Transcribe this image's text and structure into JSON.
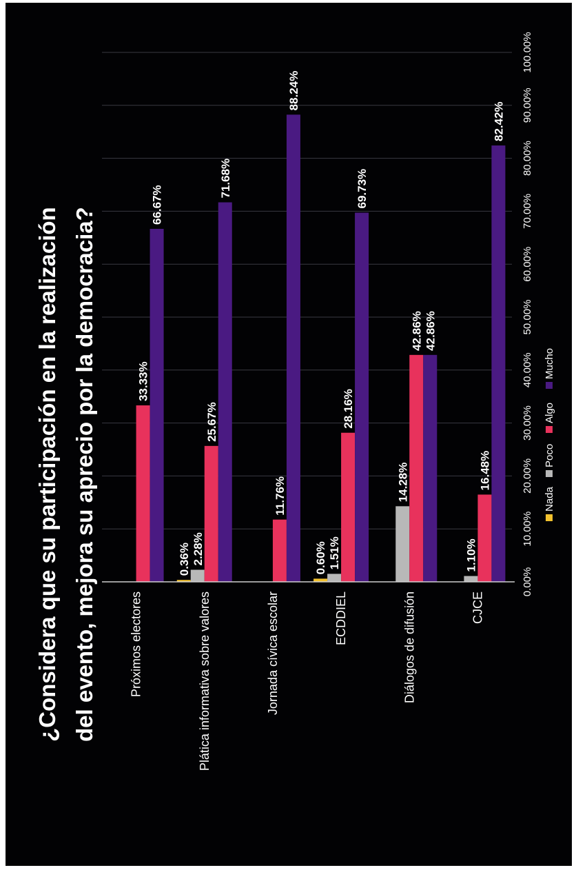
{
  "chart_data": {
    "type": "bar",
    "orientation": "horizontal",
    "title": "¿Considera que su participación en la realización del evento, mejora su aprecio por la democracia?",
    "title_lines": [
      "¿Considera que su participación en la realización",
      "del evento, mejora su aprecio por la democracia?"
    ],
    "categories": [
      "Próximos electores",
      "Plática informativa sobre valores",
      "Jornada cívica escolar",
      "ECDDIEL",
      "Diálogos de difusión",
      "CJCE"
    ],
    "series": [
      {
        "name": "Nada",
        "color": "#f2c12e",
        "values": [
          0,
          0.36,
          0,
          0.6,
          0,
          0
        ],
        "labels": [
          "",
          "0.36%",
          "",
          "0.60%",
          "",
          ""
        ]
      },
      {
        "name": "Poco",
        "color": "#b8b8b8",
        "values": [
          0,
          2.28,
          0,
          1.51,
          14.28,
          1.1
        ],
        "labels": [
          "",
          "2.28%",
          "",
          "1.51%",
          "14.28%",
          "1.10%"
        ]
      },
      {
        "name": "Algo",
        "color": "#e8325c",
        "values": [
          33.33,
          25.67,
          11.76,
          28.16,
          42.86,
          16.48
        ],
        "labels": [
          "33.33%",
          "25.67%",
          "11.76%",
          "28.16%",
          "42.86%",
          "16.48%"
        ]
      },
      {
        "name": "Mucho",
        "color": "#4a1a82",
        "values": [
          66.67,
          71.68,
          88.24,
          69.73,
          42.86,
          82.42
        ],
        "labels": [
          "66.67%",
          "71.68%",
          "88.24%",
          "69.73%",
          "42.86%",
          "82.42%"
        ]
      }
    ],
    "xlim": [
      0,
      100
    ],
    "x_ticks": [
      "0.00%",
      "10.00%",
      "20.00%",
      "30.00%",
      "40.00%",
      "50.00%",
      "60.00%",
      "70.00%",
      "80.00%",
      "90.00%",
      "100.00%"
    ],
    "xlabel": "",
    "ylabel": "",
    "grid": true,
    "legend": "bottom"
  }
}
